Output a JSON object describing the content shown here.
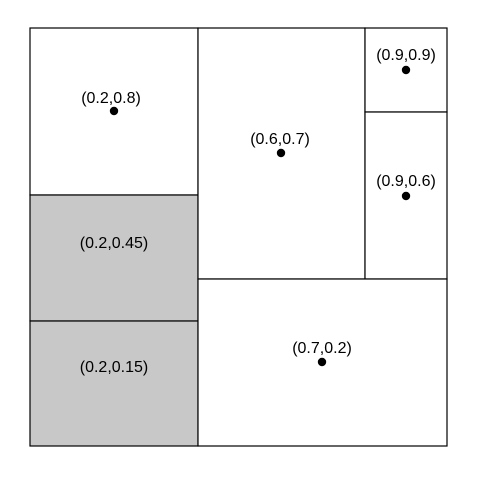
{
  "colors": {
    "background": "#ffffff",
    "shaded_cell": "#c8c8c8",
    "unshaded_cell": "#ffffff",
    "stroke": "#000000"
  },
  "cells": [
    {
      "id": "cell-1",
      "label": "(0.2,0.8)",
      "shaded": false,
      "has_point": true
    },
    {
      "id": "cell-2",
      "label": "(0.2,0.45)",
      "shaded": true,
      "has_point": false
    },
    {
      "id": "cell-3",
      "label": "(0.2,0.15)",
      "shaded": true,
      "has_point": false
    },
    {
      "id": "cell-4",
      "label": "(0.6,0.7)",
      "shaded": false,
      "has_point": true
    },
    {
      "id": "cell-5",
      "label": "(0.9,0.9)",
      "shaded": false,
      "has_point": true
    },
    {
      "id": "cell-6",
      "label": "(0.9,0.6)",
      "shaded": false,
      "has_point": true
    },
    {
      "id": "cell-7",
      "label": "(0.7,0.2)",
      "shaded": false,
      "has_point": true
    }
  ]
}
